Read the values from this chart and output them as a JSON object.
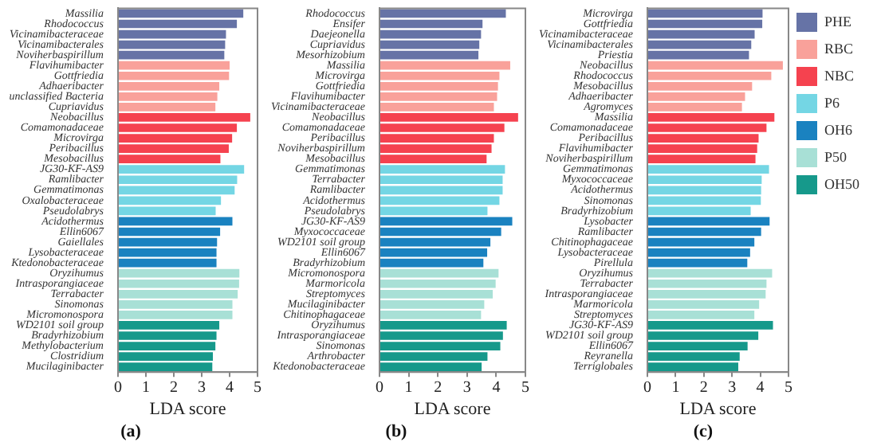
{
  "chart_data": [
    {
      "type": "bar",
      "orientation": "horizontal",
      "title": "(a)",
      "xlabel": "LDA score",
      "xlim": [
        0,
        5
      ],
      "xticks": [
        0,
        1,
        2,
        3,
        4,
        5
      ],
      "legend": false,
      "categories": [
        "Massilia",
        "Rhodococcus",
        "Vicinamibacteraceae",
        "Vicinamibacterales",
        "Noviherbaspirillum",
        "Flavihumibacter",
        "Gottfriedia",
        "Adhaeribacter",
        "unclassified Bacteria",
        "Cupriavidus",
        "Neobacillus",
        "Comamonadaceae",
        "Microvirga",
        "Peribacillus",
        "Mesobacillus",
        "JG30-KF-AS9",
        "Ramlibacter",
        "Gemmatimonas",
        "Oxalobacteraceae",
        "Pseudolabrys",
        "Acidothermus",
        "Ellin6067",
        "Gaiellales",
        "Lysobacteraceae",
        "Ktedonobacteraceae",
        "Oryzihumus",
        "Intrasporangiaceae",
        "Terrabacter",
        "Sinomonas",
        "Micromonospora",
        "WD2101 soil group",
        "Bradyrhizobium",
        "Methylobacterium",
        "Clostridium",
        "Mucilaginibacter"
      ],
      "series": [
        {
          "color": "#6673a6",
          "values": [
            4.49,
            4.26,
            3.87,
            3.84,
            3.81,
            null,
            null,
            null,
            null,
            null,
            null,
            null,
            null,
            null,
            null,
            null,
            null,
            null,
            null,
            null,
            null,
            null,
            null,
            null,
            null,
            null,
            null,
            null,
            null,
            null,
            null,
            null,
            null,
            null,
            null
          ]
        },
        {
          "color": "#f9a19a",
          "values": [
            null,
            null,
            null,
            null,
            null,
            4.0,
            3.98,
            3.63,
            3.56,
            3.49,
            null,
            null,
            null,
            null,
            null,
            null,
            null,
            null,
            null,
            null,
            null,
            null,
            null,
            null,
            null,
            null,
            null,
            null,
            null,
            null,
            null,
            null,
            null,
            null,
            null
          ]
        },
        {
          "color": "#f5424f",
          "values": [
            null,
            null,
            null,
            null,
            null,
            null,
            null,
            null,
            null,
            null,
            4.74,
            4.26,
            4.09,
            3.97,
            3.67,
            null,
            null,
            null,
            null,
            null,
            null,
            null,
            null,
            null,
            null,
            null,
            null,
            null,
            null,
            null,
            null,
            null,
            null,
            null,
            null
          ]
        },
        {
          "color": "#74d6e4",
          "values": [
            null,
            null,
            null,
            null,
            null,
            null,
            null,
            null,
            null,
            null,
            null,
            null,
            null,
            null,
            null,
            4.52,
            4.27,
            4.18,
            3.69,
            3.5,
            null,
            null,
            null,
            null,
            null,
            null,
            null,
            null,
            null,
            null,
            null,
            null,
            null,
            null,
            null
          ]
        },
        {
          "color": "#1a82c0",
          "values": [
            null,
            null,
            null,
            null,
            null,
            null,
            null,
            null,
            null,
            null,
            null,
            null,
            null,
            null,
            null,
            null,
            null,
            null,
            null,
            null,
            4.1,
            3.66,
            3.55,
            3.53,
            3.53,
            null,
            null,
            null,
            null,
            null,
            null,
            null,
            null,
            null,
            null
          ]
        },
        {
          "color": "#a8e0d6",
          "values": [
            null,
            null,
            null,
            null,
            null,
            null,
            null,
            null,
            null,
            null,
            null,
            null,
            null,
            null,
            null,
            null,
            null,
            null,
            null,
            null,
            null,
            null,
            null,
            null,
            null,
            4.35,
            4.34,
            4.29,
            4.1,
            4.1,
            null,
            null,
            null,
            null,
            null
          ]
        },
        {
          "color": "#16998b",
          "values": [
            null,
            null,
            null,
            null,
            null,
            null,
            null,
            null,
            null,
            null,
            null,
            null,
            null,
            null,
            null,
            null,
            null,
            null,
            null,
            null,
            null,
            null,
            null,
            null,
            null,
            null,
            null,
            null,
            null,
            null,
            3.63,
            3.53,
            3.49,
            3.4,
            3.38
          ]
        }
      ]
    },
    {
      "type": "bar",
      "orientation": "horizontal",
      "title": "(b)",
      "xlabel": "LDA score",
      "xlim": [
        0,
        5
      ],
      "xticks": [
        0,
        1,
        2,
        3,
        4,
        5
      ],
      "legend": false,
      "categories": [
        "Rhodococcus",
        "Ensifer",
        "Daejeonella",
        "Cupriavidus",
        "Mesorhizobium",
        "Massilia",
        "Microvirga",
        "Gottfriedia",
        "Flavihumibacter",
        "Vicinamibacteraceae",
        "Neobacillus",
        "Comamonadaceae",
        "Peribacillus",
        "Noviherbaspirillum",
        "Mesobacillus",
        "Gemmatimonas",
        "Terrabacter",
        "Ramlibacter",
        "Acidothermus",
        "Pseudolabrys",
        "JG30-KF-AS9",
        "Myxococcaceae",
        "WD2101 soil group",
        "Ellin6067",
        "Bradyrhizobium",
        "Micromonospora",
        "Marmoricola",
        "Streptomyces",
        "Mucilaginibacter",
        "Chitinophagaceae",
        "Oryzihumus",
        "Intrasporangiaceae",
        "Sinomonas",
        "Arthrobacter",
        "Ktedonobacteraceae"
      ],
      "series": [
        {
          "color": "#6673a6",
          "values": [
            4.33,
            3.53,
            3.48,
            3.42,
            3.39,
            null,
            null,
            null,
            null,
            null,
            null,
            null,
            null,
            null,
            null,
            null,
            null,
            null,
            null,
            null,
            null,
            null,
            null,
            null,
            null,
            null,
            null,
            null,
            null,
            null,
            null,
            null,
            null,
            null,
            null
          ]
        },
        {
          "color": "#f9a19a",
          "values": [
            null,
            null,
            null,
            null,
            null,
            4.48,
            4.11,
            4.06,
            4.03,
            3.92,
            null,
            null,
            null,
            null,
            null,
            null,
            null,
            null,
            null,
            null,
            null,
            null,
            null,
            null,
            null,
            null,
            null,
            null,
            null,
            null,
            null,
            null,
            null,
            null,
            null
          ]
        },
        {
          "color": "#f5424f",
          "values": [
            null,
            null,
            null,
            null,
            null,
            null,
            null,
            null,
            null,
            null,
            4.75,
            4.28,
            3.92,
            3.84,
            3.67,
            null,
            null,
            null,
            null,
            null,
            null,
            null,
            null,
            null,
            null,
            null,
            null,
            null,
            null,
            null,
            null,
            null,
            null,
            null,
            null
          ]
        },
        {
          "color": "#74d6e4",
          "values": [
            null,
            null,
            null,
            null,
            null,
            null,
            null,
            null,
            null,
            null,
            null,
            null,
            null,
            null,
            null,
            4.3,
            4.22,
            4.22,
            4.11,
            3.7,
            null,
            null,
            null,
            null,
            null,
            null,
            null,
            null,
            null,
            null,
            null,
            null,
            null,
            null,
            null
          ]
        },
        {
          "color": "#1a82c0",
          "values": [
            null,
            null,
            null,
            null,
            null,
            null,
            null,
            null,
            null,
            null,
            null,
            null,
            null,
            null,
            null,
            null,
            null,
            null,
            null,
            null,
            4.55,
            4.17,
            3.8,
            3.69,
            3.56,
            null,
            null,
            null,
            null,
            null,
            null,
            null,
            null,
            null,
            null
          ]
        },
        {
          "color": "#a8e0d6",
          "values": [
            null,
            null,
            null,
            null,
            null,
            null,
            null,
            null,
            null,
            null,
            null,
            null,
            null,
            null,
            null,
            null,
            null,
            null,
            null,
            null,
            null,
            null,
            null,
            null,
            null,
            4.08,
            3.98,
            3.88,
            3.59,
            3.48,
            null,
            null,
            null,
            null,
            null
          ]
        },
        {
          "color": "#16998b",
          "values": [
            null,
            null,
            null,
            null,
            null,
            null,
            null,
            null,
            null,
            null,
            null,
            null,
            null,
            null,
            null,
            null,
            null,
            null,
            null,
            null,
            null,
            null,
            null,
            null,
            null,
            null,
            null,
            null,
            null,
            null,
            4.36,
            4.23,
            4.14,
            3.7,
            3.5
          ]
        }
      ]
    },
    {
      "type": "bar",
      "orientation": "horizontal",
      "title": "(c)",
      "xlabel": "LDA score",
      "xlim": [
        0,
        5
      ],
      "xticks": [
        0,
        1,
        2,
        3,
        4,
        5
      ],
      "legend": "top right",
      "categories": [
        "Microvirga",
        "Gottfriedia",
        "Vicinamibacteraceae",
        "Vicinamibacterales",
        "Priestia",
        "Neobacillus",
        "Rhodococcus",
        "Mesobacillus",
        "Adhaeribacter",
        "Agromyces",
        "Massilia",
        "Comamonadaceae",
        "Peribacillus",
        "Flavihumibacter",
        "Noviherbaspirillum",
        "Gemmatimonas",
        "Myxococcaceae",
        "Acidothermus",
        "Sinomonas",
        "Bradyrhizobium",
        "Lysobacter",
        "Ramlibacter",
        "Chitinophagaceae",
        "Lysobacteraceae",
        "Pirellula",
        "Oryzihumus",
        "Terrabacter",
        "Intrasporangiaceae",
        "Marmoricola",
        "Streptomyces",
        "JG30-KF-AS9",
        "WD2101 soil group",
        "Ellin6067",
        "Reyranella",
        "Terriglobales"
      ],
      "series": [
        {
          "name": "PHE",
          "color": "#6673a6",
          "values": [
            4.08,
            4.07,
            3.8,
            3.68,
            3.6,
            null,
            null,
            null,
            null,
            null,
            null,
            null,
            null,
            null,
            null,
            null,
            null,
            null,
            null,
            null,
            null,
            null,
            null,
            null,
            null,
            null,
            null,
            null,
            null,
            null,
            null,
            null,
            null,
            null,
            null
          ]
        },
        {
          "name": "RBC",
          "color": "#f9a19a",
          "values": [
            null,
            null,
            null,
            null,
            null,
            4.8,
            4.39,
            3.71,
            3.46,
            3.35,
            null,
            null,
            null,
            null,
            null,
            null,
            null,
            null,
            null,
            null,
            null,
            null,
            null,
            null,
            null,
            null,
            null,
            null,
            null,
            null,
            null,
            null,
            null,
            null,
            null
          ]
        },
        {
          "name": "NBC",
          "color": "#f5424f",
          "values": [
            null,
            null,
            null,
            null,
            null,
            null,
            null,
            null,
            null,
            null,
            4.5,
            4.22,
            3.94,
            3.89,
            3.83,
            null,
            null,
            null,
            null,
            null,
            null,
            null,
            null,
            null,
            null,
            null,
            null,
            null,
            null,
            null,
            null,
            null,
            null,
            null,
            null
          ]
        },
        {
          "name": "P6",
          "color": "#74d6e4",
          "values": [
            null,
            null,
            null,
            null,
            null,
            null,
            null,
            null,
            null,
            null,
            null,
            null,
            null,
            null,
            null,
            4.31,
            4.05,
            4.03,
            4.02,
            3.66,
            null,
            null,
            null,
            null,
            null,
            null,
            null,
            null,
            null,
            null,
            null,
            null,
            null,
            null,
            null
          ]
        },
        {
          "name": "OH6",
          "color": "#1a82c0",
          "values": [
            null,
            null,
            null,
            null,
            null,
            null,
            null,
            null,
            null,
            null,
            null,
            null,
            null,
            null,
            null,
            null,
            null,
            null,
            null,
            null,
            4.33,
            4.03,
            3.79,
            3.64,
            3.54,
            null,
            null,
            null,
            null,
            null,
            null,
            null,
            null,
            null,
            null
          ]
        },
        {
          "name": "P50",
          "color": "#a8e0d6",
          "values": [
            null,
            null,
            null,
            null,
            null,
            null,
            null,
            null,
            null,
            null,
            null,
            null,
            null,
            null,
            null,
            null,
            null,
            null,
            null,
            null,
            null,
            null,
            null,
            null,
            null,
            4.42,
            4.22,
            4.19,
            3.96,
            3.79,
            null,
            null,
            null,
            null,
            null
          ]
        },
        {
          "name": "OH50",
          "color": "#16998b",
          "values": [
            null,
            null,
            null,
            null,
            null,
            null,
            null,
            null,
            null,
            null,
            null,
            null,
            null,
            null,
            null,
            null,
            null,
            null,
            null,
            null,
            null,
            null,
            null,
            null,
            null,
            null,
            null,
            null,
            null,
            null,
            4.45,
            3.93,
            3.55,
            3.27,
            3.22
          ]
        }
      ]
    }
  ]
}
